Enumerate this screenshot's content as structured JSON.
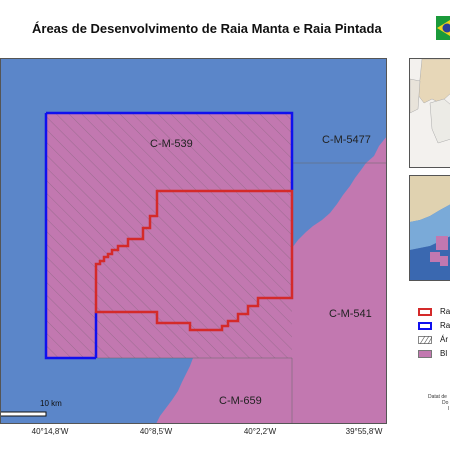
{
  "title": "Áreas de Desenvolvimento de Raia Manta e Raia Pintada",
  "colors": {
    "ocean": "#5b86c9",
    "block": "#c278b0",
    "red_outline": "#d42a2a",
    "blue_outline": "#1010ee"
  },
  "map": {
    "blocks": {
      "c539": "C-M-539",
      "c5477": "C-M-5477",
      "c541": "C-M-541",
      "c659": "C-M-659"
    },
    "coords": [
      "40°14,8'W",
      "40°8,5'W",
      "40°2,2'W",
      "39°55,8'W"
    ],
    "scale": "10 km"
  },
  "legend": {
    "items": [
      {
        "symbol": "red-outline",
        "label": "Ra"
      },
      {
        "symbol": "blue-outline",
        "label": "Ra"
      },
      {
        "symbol": "hatch",
        "label": "Ár"
      },
      {
        "symbol": "pink-fill",
        "label": "Bl"
      }
    ]
  },
  "credits": [
    "Datat de",
    "Do",
    "I"
  ],
  "icons": {
    "flag": "brazil-flag-icon",
    "north": "north-arrow-icon"
  }
}
